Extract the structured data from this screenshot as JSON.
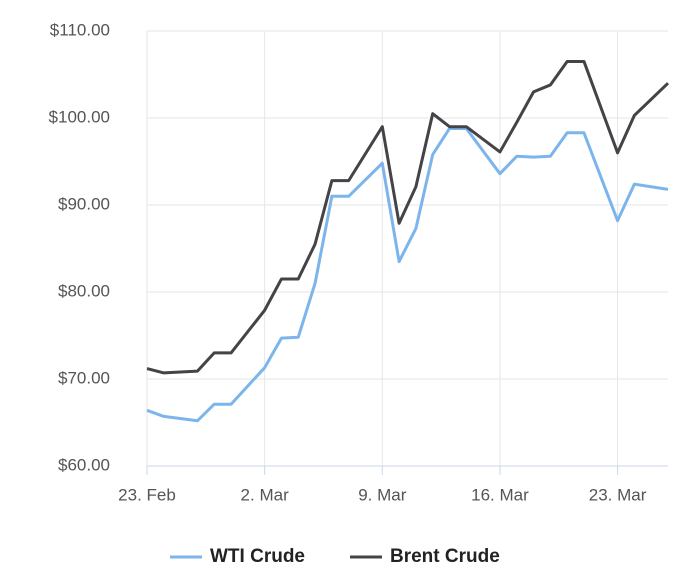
{
  "chart_data": {
    "type": "line",
    "x": [
      "23. Feb",
      "24. Feb",
      "26. Feb",
      "27. Feb",
      "28. Feb",
      "2. Mar",
      "3. Mar",
      "4. Mar",
      "5. Mar",
      "6. Mar",
      "7. Mar",
      "9. Mar",
      "10. Mar",
      "11. Mar",
      "12. Mar",
      "13. Mar",
      "14. Mar",
      "16. Mar",
      "17. Mar",
      "18. Mar",
      "19. Mar",
      "20. Mar",
      "21. Mar",
      "23. Mar",
      "24. Mar",
      "26. Mar"
    ],
    "series": [
      {
        "name": "WTI Crude",
        "color": "#7cb5ec",
        "values": [
          66.4,
          65.7,
          65.2,
          67.1,
          67.1,
          71.3,
          74.7,
          74.8,
          81.0,
          91.0,
          91.0,
          94.8,
          83.5,
          87.3,
          95.8,
          98.8,
          98.8,
          93.6,
          95.6,
          95.5,
          95.6,
          98.3,
          98.3,
          88.2,
          92.4,
          91.8
        ]
      },
      {
        "name": "Brent Crude",
        "color": "#434348",
        "values": [
          71.2,
          70.7,
          70.9,
          73.0,
          73.0,
          77.9,
          81.5,
          81.5,
          85.5,
          92.8,
          92.8,
          99.0,
          87.9,
          92.1,
          100.5,
          99.0,
          99.0,
          96.1,
          99.5,
          103.0,
          103.8,
          106.5,
          106.5,
          96.0,
          100.3,
          104.0
        ]
      }
    ],
    "xlim": [
      "23. Feb",
      "26. Mar"
    ],
    "xticks": [
      "23. Feb",
      "2. Mar",
      "9. Mar",
      "16. Mar",
      "23. Mar"
    ],
    "ylim": [
      60,
      110
    ],
    "yticks": [
      {
        "value": 60,
        "label": "$60.00"
      },
      {
        "value": 70,
        "label": "$70.00"
      },
      {
        "value": 80,
        "label": "$80.00"
      },
      {
        "value": 90,
        "label": "$90.00"
      },
      {
        "value": 100,
        "label": "$100.00"
      },
      {
        "value": 110,
        "label": "$110.00"
      }
    ],
    "grid": true,
    "legend": "bottom"
  }
}
